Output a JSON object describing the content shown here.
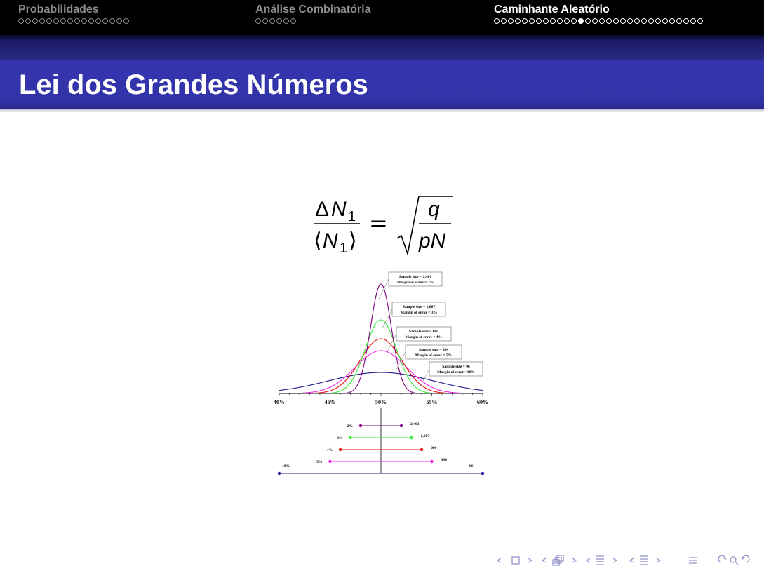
{
  "nav": {
    "sections": [
      {
        "title": "Probabilidades",
        "dots": 16,
        "active": false,
        "current": -1
      },
      {
        "title": "Análise Combinatória",
        "dots": 6,
        "active": false,
        "current": -1
      },
      {
        "title": "Caminhante Aleatório",
        "dots": 30,
        "active": true,
        "current": 12
      }
    ]
  },
  "frame": {
    "title": "Lei dos Grandes Números"
  },
  "formula": {
    "num_delta": "Δ",
    "num_var": "N",
    "num_sub": "1",
    "den_lang": "⟨",
    "den_var": "N",
    "den_sub": "1",
    "den_rang": "⟩",
    "equals": "=",
    "rad_num": "q",
    "rad_den": "pN"
  },
  "chart_data": {
    "type": "line",
    "x_ticks": [
      "40%",
      "45%",
      "50%",
      "55%",
      "60%"
    ],
    "xlim": [
      40,
      60
    ],
    "mean": 50,
    "series": [
      {
        "sample_size": "2,401",
        "margin": "2%",
        "label_line1": "Sample size = 2,401",
        "label_line2": "Margin of error = 2%",
        "color": "#800080"
      },
      {
        "sample_size": "1,067",
        "margin": "3%",
        "label_line1": "Sample size = 1,067",
        "label_line2": "Margin of error = 3%",
        "color": "#33ee33"
      },
      {
        "sample_size": "600",
        "margin": "4%",
        "label_line1": "Sample size = 600",
        "label_line2": "Margin of error = 4%",
        "color": "#ee1111"
      },
      {
        "sample_size": "384",
        "margin": "5%",
        "label_line1": "Sample size = 384",
        "label_line2": "Margin of error = 5%",
        "color": "#ee22ee"
      },
      {
        "sample_size": "96",
        "margin": "10%",
        "label_line1": "Sample size = 96",
        "label_line2": "Margin of error =10%",
        "color": "#1a1a8c"
      }
    ],
    "intervals": [
      {
        "margin": 2,
        "left_label": "2%",
        "right_label": "2,401",
        "color": "#800080"
      },
      {
        "margin": 3,
        "left_label": "3%",
        "right_label": "1,067",
        "color": "#33ee33"
      },
      {
        "margin": 4,
        "left_label": "4%",
        "right_label": "600",
        "color": "#ee1111"
      },
      {
        "margin": 5,
        "left_label": "5%",
        "right_label": "384",
        "color": "#ee22ee"
      },
      {
        "margin": 10,
        "left_label": "10%",
        "right_label": "96",
        "color": "#1a1a8c"
      }
    ]
  },
  "footer_nav": {
    "color": "#8c8cc8"
  }
}
